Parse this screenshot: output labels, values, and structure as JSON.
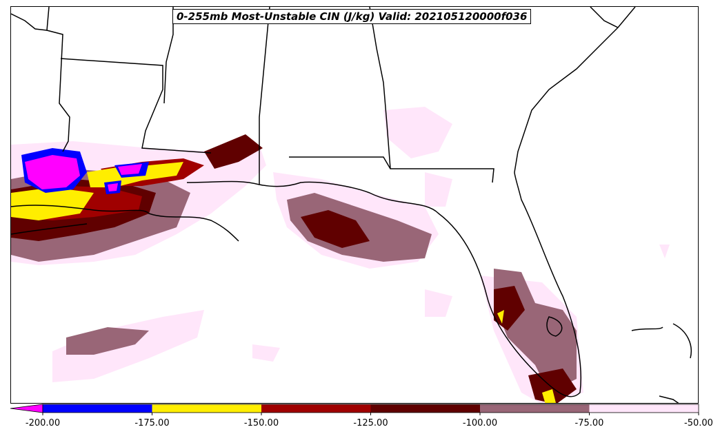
{
  "title": "0-255mb Most-Unstable CIN (J/kg) Valid: 202105120000f036",
  "legend": {
    "levels": [
      {
        "min": -200,
        "max": -175,
        "color": "#0000ff"
      },
      {
        "min": -175,
        "max": -150,
        "color": "#ffee00"
      },
      {
        "min": -150,
        "max": -125,
        "color": "#a00000"
      },
      {
        "min": -125,
        "max": -100,
        "color": "#600000"
      },
      {
        "min": -100,
        "max": -75,
        "color": "#996677"
      },
      {
        "min": -75,
        "max": -50,
        "color": "#ffe6fa"
      }
    ],
    "under_color": "#ff00ff",
    "ticks": [
      "-200.00",
      "-175.00",
      "-150.00",
      "-125.00",
      "-100.00",
      "-75.00",
      "-50.00"
    ]
  }
}
